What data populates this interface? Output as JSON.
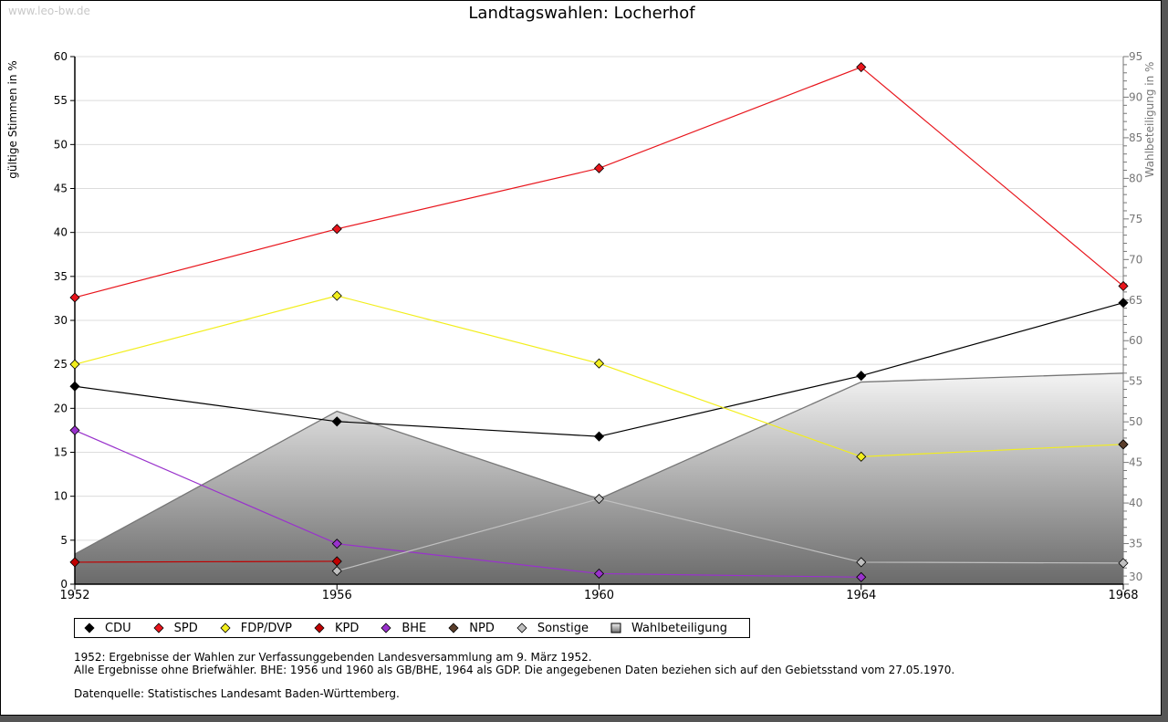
{
  "watermark": "www.leo-bw.de",
  "chart_data": {
    "type": "line",
    "title": "Landtagswahlen: Locherhof",
    "xlabel": "",
    "ylabel": "gültige Stimmen in %",
    "y2label": "Wahlbeteiligung in %",
    "x": [
      "1952",
      "1956",
      "1960",
      "1964",
      "1968"
    ],
    "ylim": [
      0,
      60
    ],
    "y2lim": [
      30,
      95
    ],
    "yticks": [
      "0",
      "5",
      "10",
      "15",
      "20",
      "25",
      "30",
      "35",
      "40",
      "45",
      "50",
      "55",
      "60"
    ],
    "y2ticks": [
      "30",
      "35",
      "40",
      "45",
      "50",
      "55",
      "60",
      "65",
      "70",
      "75",
      "80",
      "85",
      "90",
      "95"
    ],
    "grid": true,
    "legend_position": "bottom",
    "series": [
      {
        "name": "CDU",
        "color": "#000000",
        "values": [
          22.5,
          18.5,
          16.8,
          23.7,
          32.0
        ]
      },
      {
        "name": "SPD",
        "color": "#e8151c",
        "values": [
          32.6,
          40.4,
          47.3,
          58.8,
          33.9
        ]
      },
      {
        "name": "FDP/DVP",
        "color": "#f2ee1c",
        "values": [
          25.0,
          32.8,
          25.1,
          14.5,
          15.9
        ]
      },
      {
        "name": "KPD",
        "color": "#c00000",
        "values": [
          2.5,
          2.6,
          null,
          null,
          null
        ]
      },
      {
        "name": "BHE",
        "color": "#9932cc",
        "values": [
          17.5,
          4.6,
          1.2,
          0.8,
          null
        ]
      },
      {
        "name": "NPD",
        "color": "#5a3e2b",
        "values": [
          null,
          null,
          null,
          null,
          15.9
        ]
      },
      {
        "name": "Sonstige",
        "color": "#c0c0c0",
        "values": [
          null,
          1.5,
          9.7,
          2.5,
          2.4
        ]
      },
      {
        "name": "Wahlbeteiligung",
        "color": "#888888",
        "axis": "right",
        "type": "area",
        "values": [
          33.7,
          51.3,
          40.5,
          54.9,
          56.0
        ]
      }
    ]
  },
  "notes": {
    "line1": "1952: Ergebnisse der Wahlen zur Verfassunggebenden Landesversammlung am 9. März 1952.",
    "line2": "Alle Ergebnisse ohne Briefwähler. BHE: 1956 und 1960 als GB/BHE, 1964 als GDP. Die angegebenen Daten beziehen sich auf den Gebietsstand vom 27.05.1970.",
    "source": "Datenquelle: Statistisches Landesamt Baden-Württemberg."
  }
}
